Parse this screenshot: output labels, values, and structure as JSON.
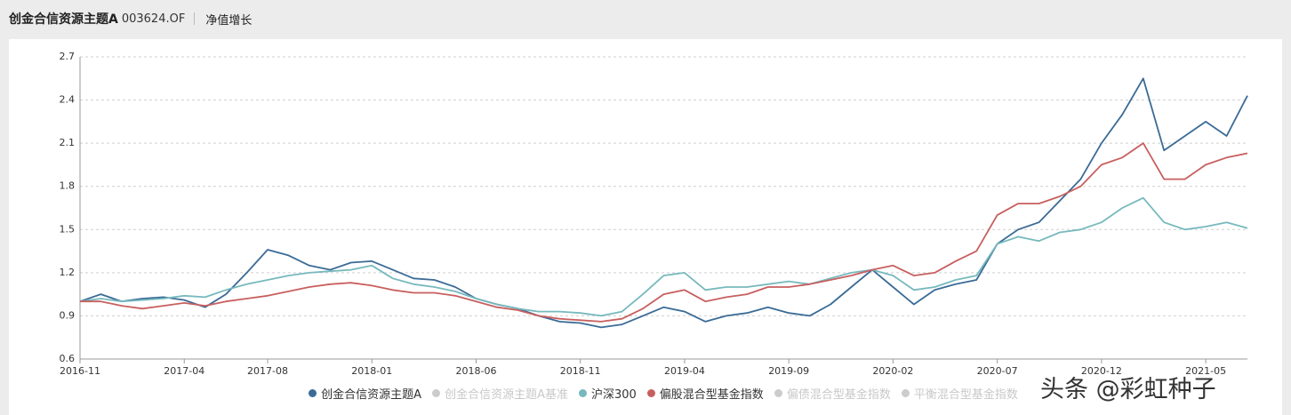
{
  "header": {
    "title": "创金合信资源主题A",
    "code": "003624.OF",
    "tab": "净值增长"
  },
  "watermark": "头条 @彩虹种子",
  "chart_data": {
    "type": "line",
    "categories": [
      "2016-11",
      null,
      null,
      null,
      null,
      "2017-04",
      null,
      null,
      null,
      "2017-08",
      null,
      null,
      null,
      null,
      "2018-01",
      null,
      null,
      null,
      null,
      "2018-06",
      null,
      null,
      null,
      null,
      "2018-11",
      null,
      null,
      null,
      null,
      "2019-04",
      null,
      null,
      null,
      null,
      "2019-09",
      null,
      null,
      null,
      null,
      "2020-02",
      null,
      null,
      null,
      null,
      "2020-07",
      null,
      null,
      null,
      null,
      "2020-12",
      null,
      null,
      null,
      null,
      "2021-05",
      null,
      null
    ],
    "ylim": [
      0.6,
      2.7
    ],
    "yticks": [
      0.6,
      0.9,
      1.2,
      1.5,
      1.8,
      2.1,
      2.4,
      2.7
    ],
    "grid": true,
    "series": [
      {
        "name": "创金合信资源主题A",
        "color": "#3a6b96",
        "visible": true,
        "values": [
          1.0,
          1.05,
          1.0,
          1.02,
          1.03,
          1.01,
          0.96,
          1.05,
          1.2,
          1.36,
          1.32,
          1.25,
          1.22,
          1.27,
          1.28,
          1.22,
          1.16,
          1.15,
          1.1,
          1.02,
          0.98,
          0.95,
          0.9,
          0.86,
          0.85,
          0.82,
          0.84,
          0.9,
          0.96,
          0.93,
          0.86,
          0.9,
          0.92,
          0.96,
          0.92,
          0.9,
          0.98,
          1.1,
          1.22,
          1.1,
          0.98,
          1.08,
          1.12,
          1.15,
          1.4,
          1.5,
          1.55,
          1.7,
          1.85,
          2.1,
          2.3,
          2.55,
          2.05,
          2.15,
          2.25,
          2.15,
          2.43
        ]
      },
      {
        "name": "创金合信资源主题A基准",
        "color": "#cccccc",
        "visible": false
      },
      {
        "name": "沪深300",
        "color": "#77b9bd",
        "visible": true,
        "values": [
          1.0,
          1.02,
          1.0,
          1.01,
          1.02,
          1.04,
          1.03,
          1.08,
          1.12,
          1.15,
          1.18,
          1.2,
          1.21,
          1.22,
          1.25,
          1.16,
          1.12,
          1.1,
          1.07,
          1.02,
          0.98,
          0.95,
          0.93,
          0.93,
          0.92,
          0.9,
          0.93,
          1.05,
          1.18,
          1.2,
          1.08,
          1.1,
          1.1,
          1.12,
          1.14,
          1.12,
          1.16,
          1.2,
          1.22,
          1.18,
          1.08,
          1.1,
          1.15,
          1.18,
          1.4,
          1.45,
          1.42,
          1.48,
          1.5,
          1.55,
          1.65,
          1.72,
          1.55,
          1.5,
          1.52,
          1.55,
          1.51
        ]
      },
      {
        "name": "偏股混合型基金指数",
        "color": "#c85f5f",
        "visible": true,
        "values": [
          1.0,
          1.0,
          0.97,
          0.95,
          0.97,
          0.99,
          0.97,
          1.0,
          1.02,
          1.04,
          1.07,
          1.1,
          1.12,
          1.13,
          1.11,
          1.08,
          1.06,
          1.06,
          1.04,
          1.0,
          0.96,
          0.94,
          0.9,
          0.88,
          0.87,
          0.86,
          0.88,
          0.95,
          1.05,
          1.08,
          1.0,
          1.03,
          1.05,
          1.1,
          1.1,
          1.12,
          1.15,
          1.18,
          1.22,
          1.25,
          1.18,
          1.2,
          1.28,
          1.35,
          1.6,
          1.68,
          1.68,
          1.73,
          1.8,
          1.95,
          2.0,
          2.1,
          1.85,
          1.85,
          1.95,
          2.0,
          2.03
        ]
      },
      {
        "name": "偏债混合型基金指数",
        "color": "#cccccc",
        "visible": false
      },
      {
        "name": "平衡混合型基金指数",
        "color": "#cccccc",
        "visible": false
      }
    ]
  }
}
